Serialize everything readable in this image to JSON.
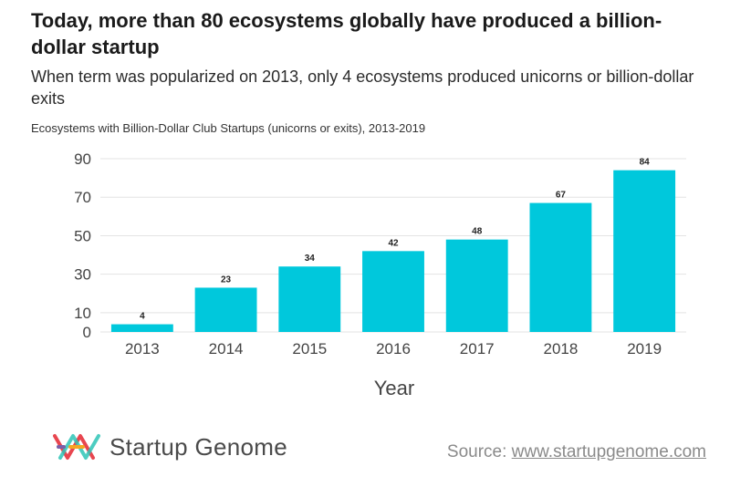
{
  "header": {
    "title": "Today, more than 80 ecosystems globally have produced a billion-dollar startup",
    "subtitle": "When term was popularized on 2013, only 4 ecosystems produced unicorns or billion-dollar exits",
    "caption": "Ecosystems with Billion-Dollar Club Startups (unicorns or exits), 2013-2019"
  },
  "chart_data": {
    "type": "bar",
    "categories": [
      "2013",
      "2014",
      "2015",
      "2016",
      "2017",
      "2018",
      "2019"
    ],
    "values": [
      4,
      23,
      34,
      42,
      48,
      67,
      84
    ],
    "xlabel": "Year",
    "ylabel": "",
    "ylim": [
      0,
      90
    ],
    "yticks": [
      0,
      10,
      30,
      50,
      70,
      90
    ],
    "data_labels": true,
    "grid": true,
    "bar_color": "#00c8dc"
  },
  "footer": {
    "brand": "Startup Genome",
    "source_prefix": "Source:",
    "source_link": "www.startupgenome.com"
  },
  "colors": {
    "bar": "#00c8dc",
    "grid": "#e3e3e3",
    "logo": [
      "#e8464f",
      "#f5a623",
      "#2ec4b6",
      "#7b5ea7"
    ]
  }
}
